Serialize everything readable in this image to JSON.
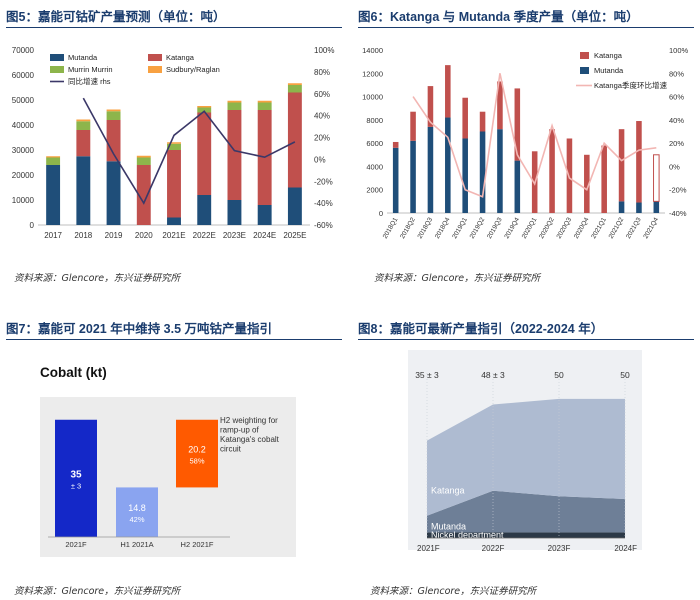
{
  "figures": {
    "fig5": {
      "title": "图5：嘉能可钴矿产量预测（单位：吨）",
      "source": "资料来源：Glencore，东兴证券研究所"
    },
    "fig6": {
      "title": "图6：Katanga 与 Mutanda 季度产量（单位：吨）",
      "source": "资料来源：Glencore，东兴证券研究所"
    },
    "fig7": {
      "title": "图7：嘉能可 2021 年中维持 3.5 万吨钴产量指引",
      "source": "资料来源：Glencore，东兴证券研究所"
    },
    "fig8": {
      "title": "图8：嘉能可最新产量指引（2022-2024 年）",
      "source": "资料来源：Glencore，东兴证券研究所"
    }
  },
  "colors": {
    "navy": "#1f4e79",
    "red": "#c0504d",
    "green": "#8db54b",
    "orange": "#f8a141",
    "pink": "#f2b6b3",
    "title": "#1b3d6e"
  },
  "chart_data": [
    {
      "id": "fig5",
      "type": "bar",
      "stacked": true,
      "categories": [
        "2017",
        "2018",
        "2019",
        "2020",
        "2021E",
        "2022E",
        "2023E",
        "2024E",
        "2025E"
      ],
      "series": [
        {
          "name": "Mutanda",
          "values": [
            24000,
            27500,
            25500,
            0,
            3000,
            12000,
            10000,
            8000,
            15000
          ]
        },
        {
          "name": "Katanga",
          "values": [
            0,
            10500,
            16500,
            24000,
            27000,
            33000,
            36000,
            38000,
            38000
          ]
        },
        {
          "name": "Murrin Murrin",
          "values": [
            3000,
            3500,
            3500,
            3000,
            2500,
            2000,
            3000,
            3000,
            3000
          ]
        },
        {
          "name": "Sudbury/Raglan",
          "values": [
            500,
            700,
            700,
            700,
            600,
            600,
            700,
            700,
            700
          ]
        }
      ],
      "line": {
        "name": "同比增速 rhs",
        "values": [
          null,
          56,
          5,
          -40,
          22,
          44,
          8,
          2,
          16
        ]
      },
      "ylim": [
        0,
        70000
      ],
      "yticks": [
        "0",
        "10000",
        "20000",
        "30000",
        "40000",
        "50000",
        "60000",
        "70000"
      ],
      "y2lim": [
        -60,
        100
      ],
      "y2ticks": [
        "-60%",
        "-40%",
        "-20%",
        "0%",
        "20%",
        "40%",
        "60%",
        "80%",
        "100%"
      ],
      "legend_placement": "top-left"
    },
    {
      "id": "fig6",
      "type": "bar",
      "stacked": true,
      "categories": [
        "2018Q1",
        "2018Q2",
        "2018Q3",
        "2018Q4",
        "2019Q1",
        "2019Q2",
        "2019Q3",
        "2019Q4",
        "2020Q1",
        "2020Q2",
        "2020Q3",
        "2020Q4",
        "2021Q1",
        "2021Q2",
        "2021Q3",
        "2021Q4"
      ],
      "series": [
        {
          "name": "Katanga",
          "values": [
            500,
            2500,
            3500,
            4500,
            3500,
            1700,
            4100,
            6200,
            5300,
            7200,
            6400,
            5000,
            5800,
            6200,
            7000,
            4000
          ]
        },
        {
          "name": "Mutanda",
          "values": [
            5600,
            6200,
            7400,
            8200,
            6400,
            7000,
            7200,
            4500,
            0,
            0,
            0,
            0,
            0,
            1000,
            900,
            1000
          ]
        }
      ],
      "line": {
        "name": "Katanga季度环比增速",
        "values": [
          null,
          60,
          38,
          25,
          -20,
          -26,
          80,
          10,
          -15,
          35,
          -10,
          -20,
          20,
          5,
          14,
          16
        ]
      },
      "ylim": [
        0,
        14000
      ],
      "yticks": [
        "0",
        "2000",
        "4000",
        "6000",
        "8000",
        "10000",
        "12000",
        "14000"
      ],
      "y2lim": [
        -40,
        100
      ],
      "y2ticks": [
        "-40%",
        "-20%",
        "0%",
        "20%",
        "40%",
        "60%",
        "80%",
        "100%"
      ],
      "legend_placement": "top-right"
    },
    {
      "id": "fig7",
      "type": "bar",
      "title": "Cobalt (kt)",
      "categories": [
        "2021F",
        "H1 2021A",
        "H2 2021F"
      ],
      "bars": [
        {
          "label": "35",
          "sublabel": "± 3",
          "base": 0,
          "value": 35,
          "color": "#1428c8"
        },
        {
          "label": "14.8",
          "sublabel": "42%",
          "base": 0,
          "value": 14.8,
          "color": "#8aa4f0"
        },
        {
          "label": "20.2",
          "sublabel": "58%",
          "base": 14.8,
          "value": 20.2,
          "color": "#ff5a00"
        }
      ],
      "annotation": "H2 weighting for ramp-up of Katanga's cobalt circuit"
    },
    {
      "id": "fig8",
      "type": "area",
      "categories": [
        "2021F",
        "2022F",
        "2023F",
        "2024F"
      ],
      "top_labels": [
        "35 ± 3",
        "48 ± 3",
        "50",
        "50"
      ],
      "series": [
        {
          "name": "Nickel department",
          "values": [
            2,
            2,
            2,
            2
          ]
        },
        {
          "name": "Mutanda",
          "values": [
            6,
            15,
            13,
            12
          ]
        },
        {
          "name": "Katanga",
          "values": [
            27,
            31,
            35,
            36
          ]
        }
      ],
      "ylim": [
        0,
        55
      ]
    }
  ]
}
